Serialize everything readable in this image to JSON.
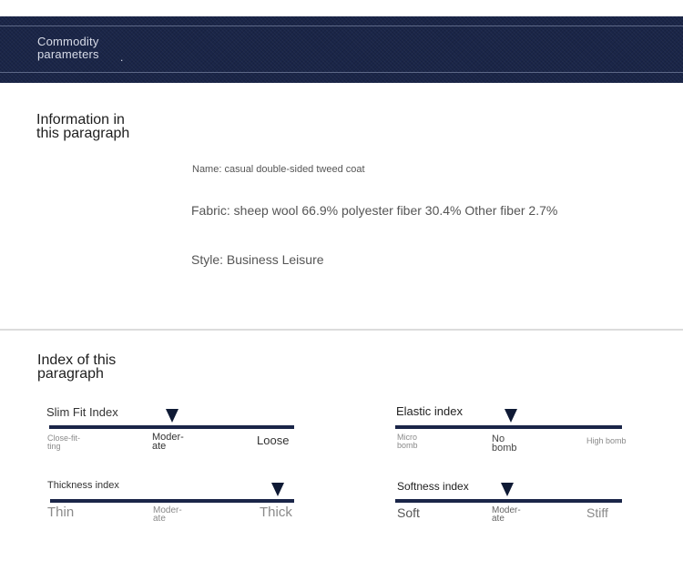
{
  "header": {
    "title": "Commodity parameters",
    "dot": "."
  },
  "info_section": {
    "heading": "Information in this paragraph",
    "name": "Name: casual double-sided tweed coat",
    "fabric": "Fabric: sheep wool 66.9% polyester fiber 30.4% Other fiber 2.7%",
    "style": "Style: Business Leisure"
  },
  "index_section": {
    "heading": "Index of this paragraph",
    "scales": [
      {
        "label": "Slim Fit Index",
        "ticks": [
          "Close-fit-ting",
          "Moder-ate",
          "Loose"
        ],
        "selected": "Moder-ate"
      },
      {
        "label": "Elastic index",
        "ticks": [
          "Micro bomb",
          "No bomb",
          "High bomb"
        ],
        "selected": "No bomb"
      },
      {
        "label": "Thickness index",
        "ticks": [
          "Thin",
          "Moder-ate",
          "Thick"
        ],
        "selected": "Thick"
      },
      {
        "label": "Softness index",
        "ticks": [
          "Soft",
          "Moder-ate",
          "Stiff"
        ],
        "selected": "Moder-ate"
      }
    ]
  }
}
